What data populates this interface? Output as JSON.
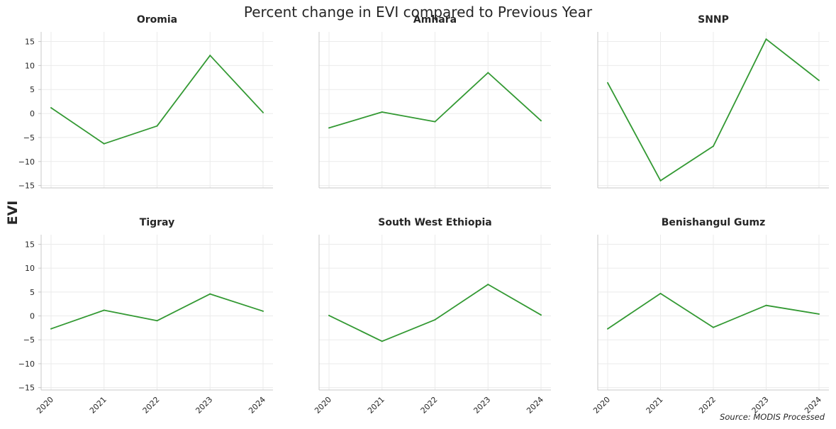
{
  "title": "Percent change in EVI compared to Previous Year",
  "ylabel": "EVI",
  "source": "Source: MODIS Processed",
  "colors": {
    "line": "#339933",
    "grid": "#ebebeb",
    "axis": "#c8c8c8",
    "text": "#262626"
  },
  "chart_data": {
    "type": "line",
    "title": "Percent change in EVI compared to Previous Year",
    "xlabel": "",
    "ylabel": "EVI",
    "x": [
      2020,
      2021,
      2022,
      2023,
      2024
    ],
    "ylim": [
      -15.5,
      17
    ],
    "yticks": [
      -15,
      -10,
      -5,
      0,
      5,
      10,
      15
    ],
    "grid": true,
    "layout": "2x3 small multiples, shared axes",
    "series": [
      {
        "name": "Oromia",
        "values": [
          1.2,
          -6.3,
          -2.6,
          12.1,
          0.2
        ]
      },
      {
        "name": "Amhara",
        "values": [
          -3.0,
          0.3,
          -1.7,
          8.5,
          -1.5
        ]
      },
      {
        "name": "SNNP",
        "values": [
          6.4,
          -14.0,
          -6.8,
          15.5,
          6.9
        ]
      },
      {
        "name": "Tigray",
        "values": [
          -2.7,
          1.2,
          -1.0,
          4.6,
          1.0
        ]
      },
      {
        "name": "South West Ethiopia",
        "values": [
          0.1,
          -5.3,
          -0.8,
          6.6,
          0.2
        ]
      },
      {
        "name": "Benishangul Gumz",
        "values": [
          -2.7,
          4.7,
          -2.4,
          2.2,
          0.4
        ]
      }
    ]
  }
}
